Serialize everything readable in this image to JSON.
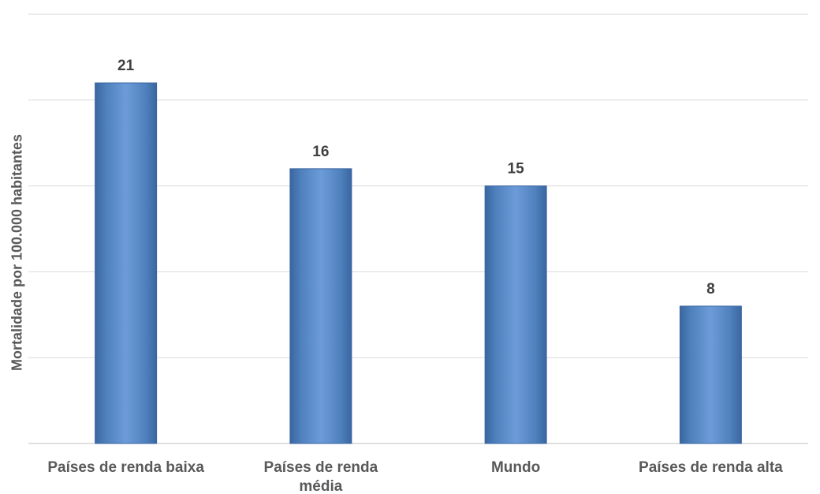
{
  "chart_data": {
    "type": "bar",
    "categories": [
      [
        "Países de renda baixa"
      ],
      [
        "Países de renda",
        "média"
      ],
      [
        "Mundo"
      ],
      [
        "Países de renda alta"
      ]
    ],
    "values": [
      21,
      16,
      15,
      8
    ],
    "data_labels": [
      "21",
      "16",
      "15",
      "8"
    ],
    "title": "",
    "xlabel": "",
    "ylabel": "Mortalidade por 100.000 habitantes",
    "ylim": [
      0,
      25
    ],
    "grid_step": 5,
    "grid": true,
    "legend": "none",
    "bar_color": "#4f81bd",
    "bar_highlight": "#6d9bd9",
    "bar_edge": "#3a66a0"
  }
}
